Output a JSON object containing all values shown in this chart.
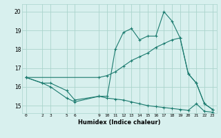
{
  "xlabel": "Humidex (Indice chaleur)",
  "bg_color": "#d8f0ee",
  "grid_color": "#aad4cc",
  "line_color": "#1a7a6e",
  "xlim": [
    -0.5,
    23.5
  ],
  "ylim": [
    14.6,
    20.4
  ],
  "yticks": [
    15,
    16,
    17,
    18,
    19,
    20
  ],
  "xticks": [
    0,
    2,
    3,
    5,
    6,
    9,
    10,
    11,
    12,
    13,
    14,
    15,
    16,
    17,
    18,
    19,
    20,
    21,
    22,
    23
  ],
  "line1_x": [
    0,
    2,
    3,
    5,
    6,
    9,
    10,
    11,
    12,
    13,
    14,
    15,
    16,
    17,
    18,
    19,
    20,
    21,
    22,
    23
  ],
  "line1_y": [
    16.5,
    16.2,
    16.2,
    15.8,
    15.3,
    15.5,
    15.5,
    18.0,
    18.9,
    19.1,
    18.5,
    18.7,
    18.7,
    20.0,
    19.5,
    18.6,
    16.7,
    16.2,
    15.1,
    14.8
  ],
  "line2_x": [
    0,
    9,
    10,
    11,
    12,
    13,
    14,
    15,
    16,
    17,
    18,
    19,
    20,
    21,
    22,
    23
  ],
  "line2_y": [
    16.5,
    16.5,
    16.6,
    16.8,
    17.1,
    17.4,
    17.6,
    17.8,
    18.1,
    18.3,
    18.5,
    18.6,
    16.7,
    16.2,
    15.1,
    14.8
  ],
  "line3_x": [
    0,
    2,
    3,
    5,
    6,
    9,
    10,
    11,
    12,
    13,
    14,
    15,
    16,
    17,
    18,
    19,
    20,
    21,
    22,
    23
  ],
  "line3_y": [
    16.5,
    16.2,
    16.0,
    15.4,
    15.2,
    15.5,
    15.4,
    15.35,
    15.3,
    15.2,
    15.1,
    15.0,
    14.95,
    14.9,
    14.85,
    14.8,
    14.75,
    15.1,
    14.7,
    14.65
  ]
}
